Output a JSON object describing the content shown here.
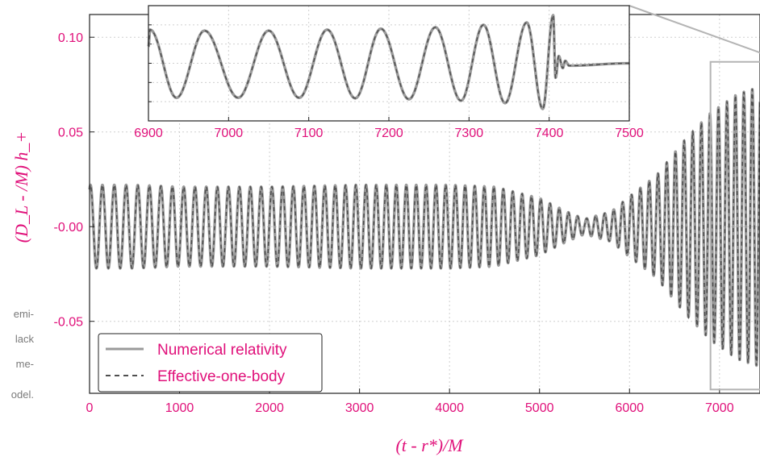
{
  "colors": {
    "accent": "#e0107a",
    "nr_line": "#9a9a9a",
    "eob_line": "#4f4f4f",
    "grid": "#cfcfcf",
    "frame": "#222222",
    "zoom_box": "#b4b4b4"
  },
  "caption_fragments": [
    "emi-",
    "lack",
    "me-",
    "odel."
  ],
  "chart_data": [
    {
      "type": "line",
      "xlabel": "(t - r*)/M",
      "ylabel": "(D_L - /M) h_+",
      "xlim": [
        0,
        7450
      ],
      "ylim": [
        -0.088,
        0.112
      ],
      "xticks": [
        0,
        1000,
        2000,
        3000,
        4000,
        5000,
        6000,
        7000
      ],
      "xtick_labels": [
        "0",
        "1000",
        "2000",
        "3000",
        "4000",
        "5000",
        "6000",
        "7000"
      ],
      "yticks": [
        0.1,
        0.05,
        0.0,
        -0.05
      ],
      "ytick_labels": [
        "0.10",
        "0.05",
        "-0.00",
        "-0.05"
      ],
      "grid": true,
      "legend_position": "lower-left",
      "series": [
        {
          "name": "Numerical relativity",
          "style": "solid",
          "color": "#9a9a9a"
        },
        {
          "name": "Effective-one-body",
          "style": "dashed",
          "color": "#4f4f4f"
        }
      ],
      "waveform": {
        "x_start": 0,
        "x_end": 7450,
        "cycles": 68,
        "envelope_x": [
          0,
          500,
          1000,
          2000,
          3000,
          4000,
          4500,
          5000,
          5300,
          5500,
          5800,
          6000,
          6300,
          6600,
          6900,
          7200,
          7450
        ],
        "envelope_amp": [
          0.022,
          0.022,
          0.021,
          0.021,
          0.022,
          0.022,
          0.021,
          0.015,
          0.008,
          0.004,
          0.008,
          0.016,
          0.027,
          0.045,
          0.06,
          0.07,
          0.074
        ],
        "baseline": 0.0
      }
    },
    {
      "type": "line",
      "role": "inset",
      "xlim": [
        6900,
        7500
      ],
      "ylim": [
        -1.2,
        1.2
      ],
      "xticks": [
        6900,
        7000,
        7100,
        7200,
        7300,
        7400,
        7500
      ],
      "xtick_labels": [
        "6900",
        "7000",
        "7100",
        "7200",
        "7300",
        "7400",
        "7500"
      ],
      "grid": true,
      "waveform": {
        "peaks_x": [
          6902,
          6970,
          7050,
          7123,
          7190,
          7258,
          7318,
          7372,
          7405,
          7412,
          7420
        ],
        "peaks_y": [
          0.7,
          0.68,
          0.68,
          0.7,
          0.72,
          0.75,
          0.8,
          0.85,
          1.0,
          0.15,
          0.05
        ],
        "troughs_x": [
          6935,
          7012,
          7088,
          7158,
          7225,
          7290,
          7345,
          7392,
          7408,
          7417,
          7425
        ],
        "troughs_y": [
          -0.72,
          -0.72,
          -0.72,
          -0.73,
          -0.75,
          -0.78,
          -0.83,
          -0.95,
          -0.3,
          -0.1,
          -0.05
        ],
        "ringdown_end": 7500
      }
    }
  ]
}
